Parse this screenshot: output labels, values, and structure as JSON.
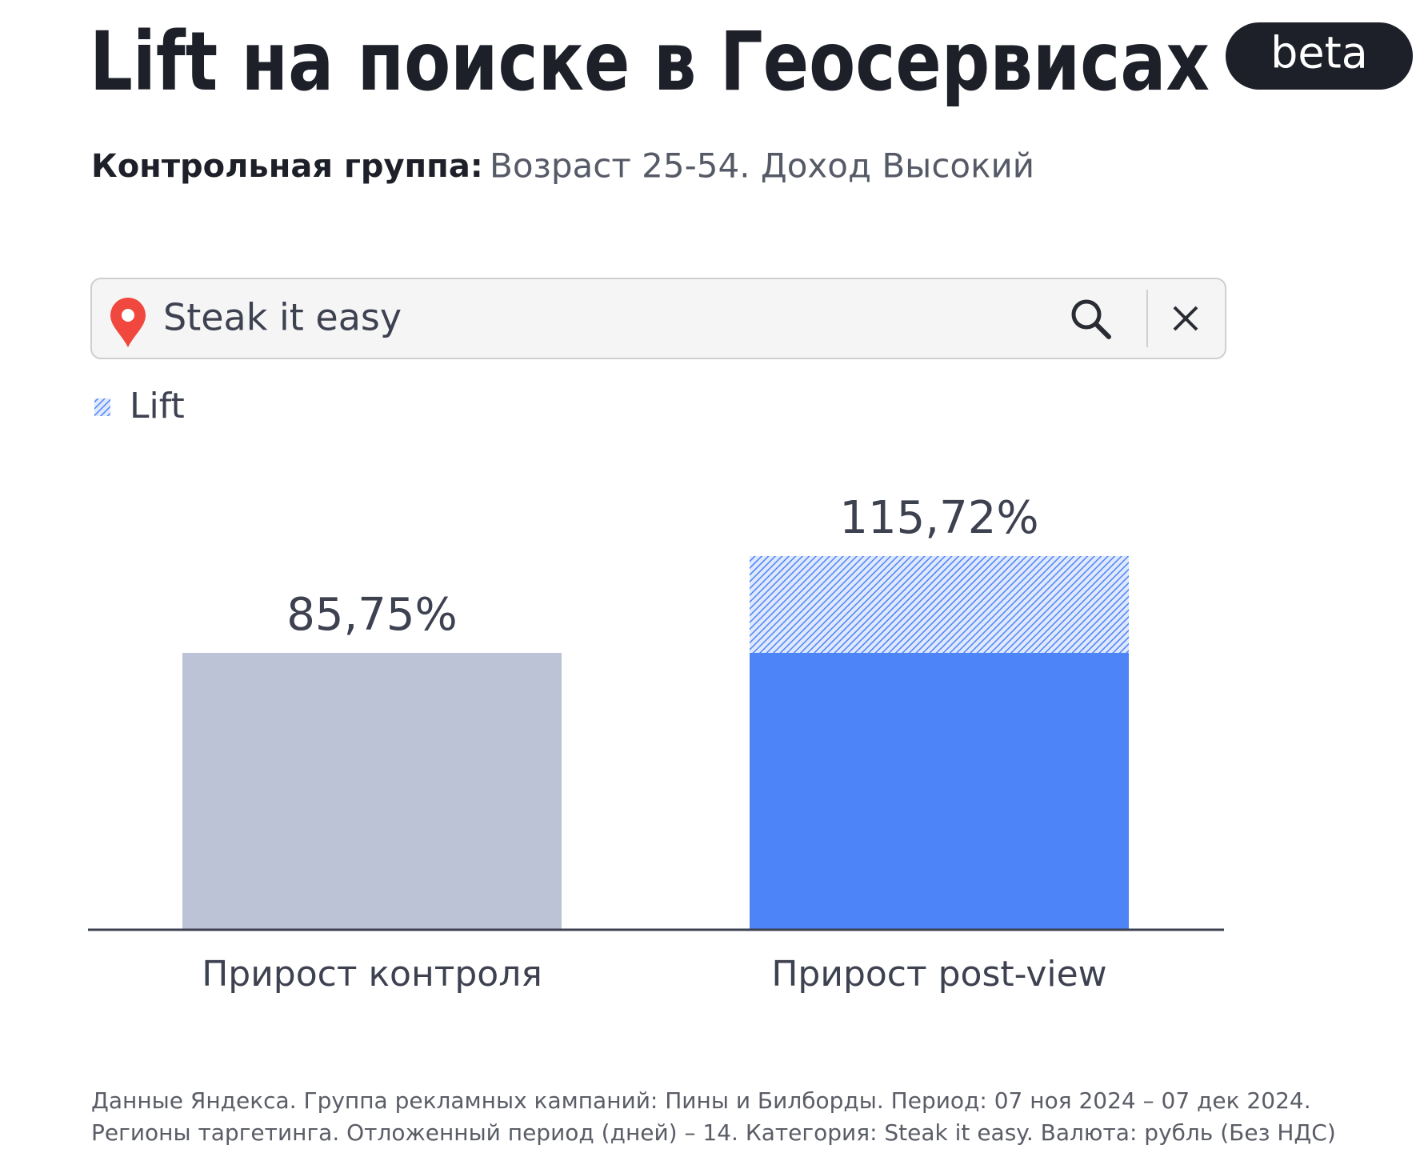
{
  "chart_data": {
    "type": "bar",
    "title": "Lift на поиске в Геосервисах",
    "badge": "beta",
    "subtitle_label": "Контрольная группа:",
    "subtitle_value": "Возраст 25-54. Доход Высокий",
    "search_text": "Steak it easy",
    "legend": "Lift",
    "categories": [
      "Прирост контроля",
      "Прирост post-view"
    ],
    "values": [
      85.75,
      115.72
    ],
    "value_labels": [
      "85,75%",
      "115,72%"
    ],
    "colors": [
      "#bcc3d6",
      "#4d84f8"
    ],
    "lift_color": "#8fb2f9",
    "ylim": [
      0,
      140
    ],
    "footer": "Данные Яндекса. Группа рекламных кампаний: Пины и Билборды. Период: 07 ноя 2024 – 07 дек 2024. Регионы таргетинга. Отложенный период (дней) – 14. Категория: Steak it easy. Валюта: рубль (Без НДС)"
  }
}
